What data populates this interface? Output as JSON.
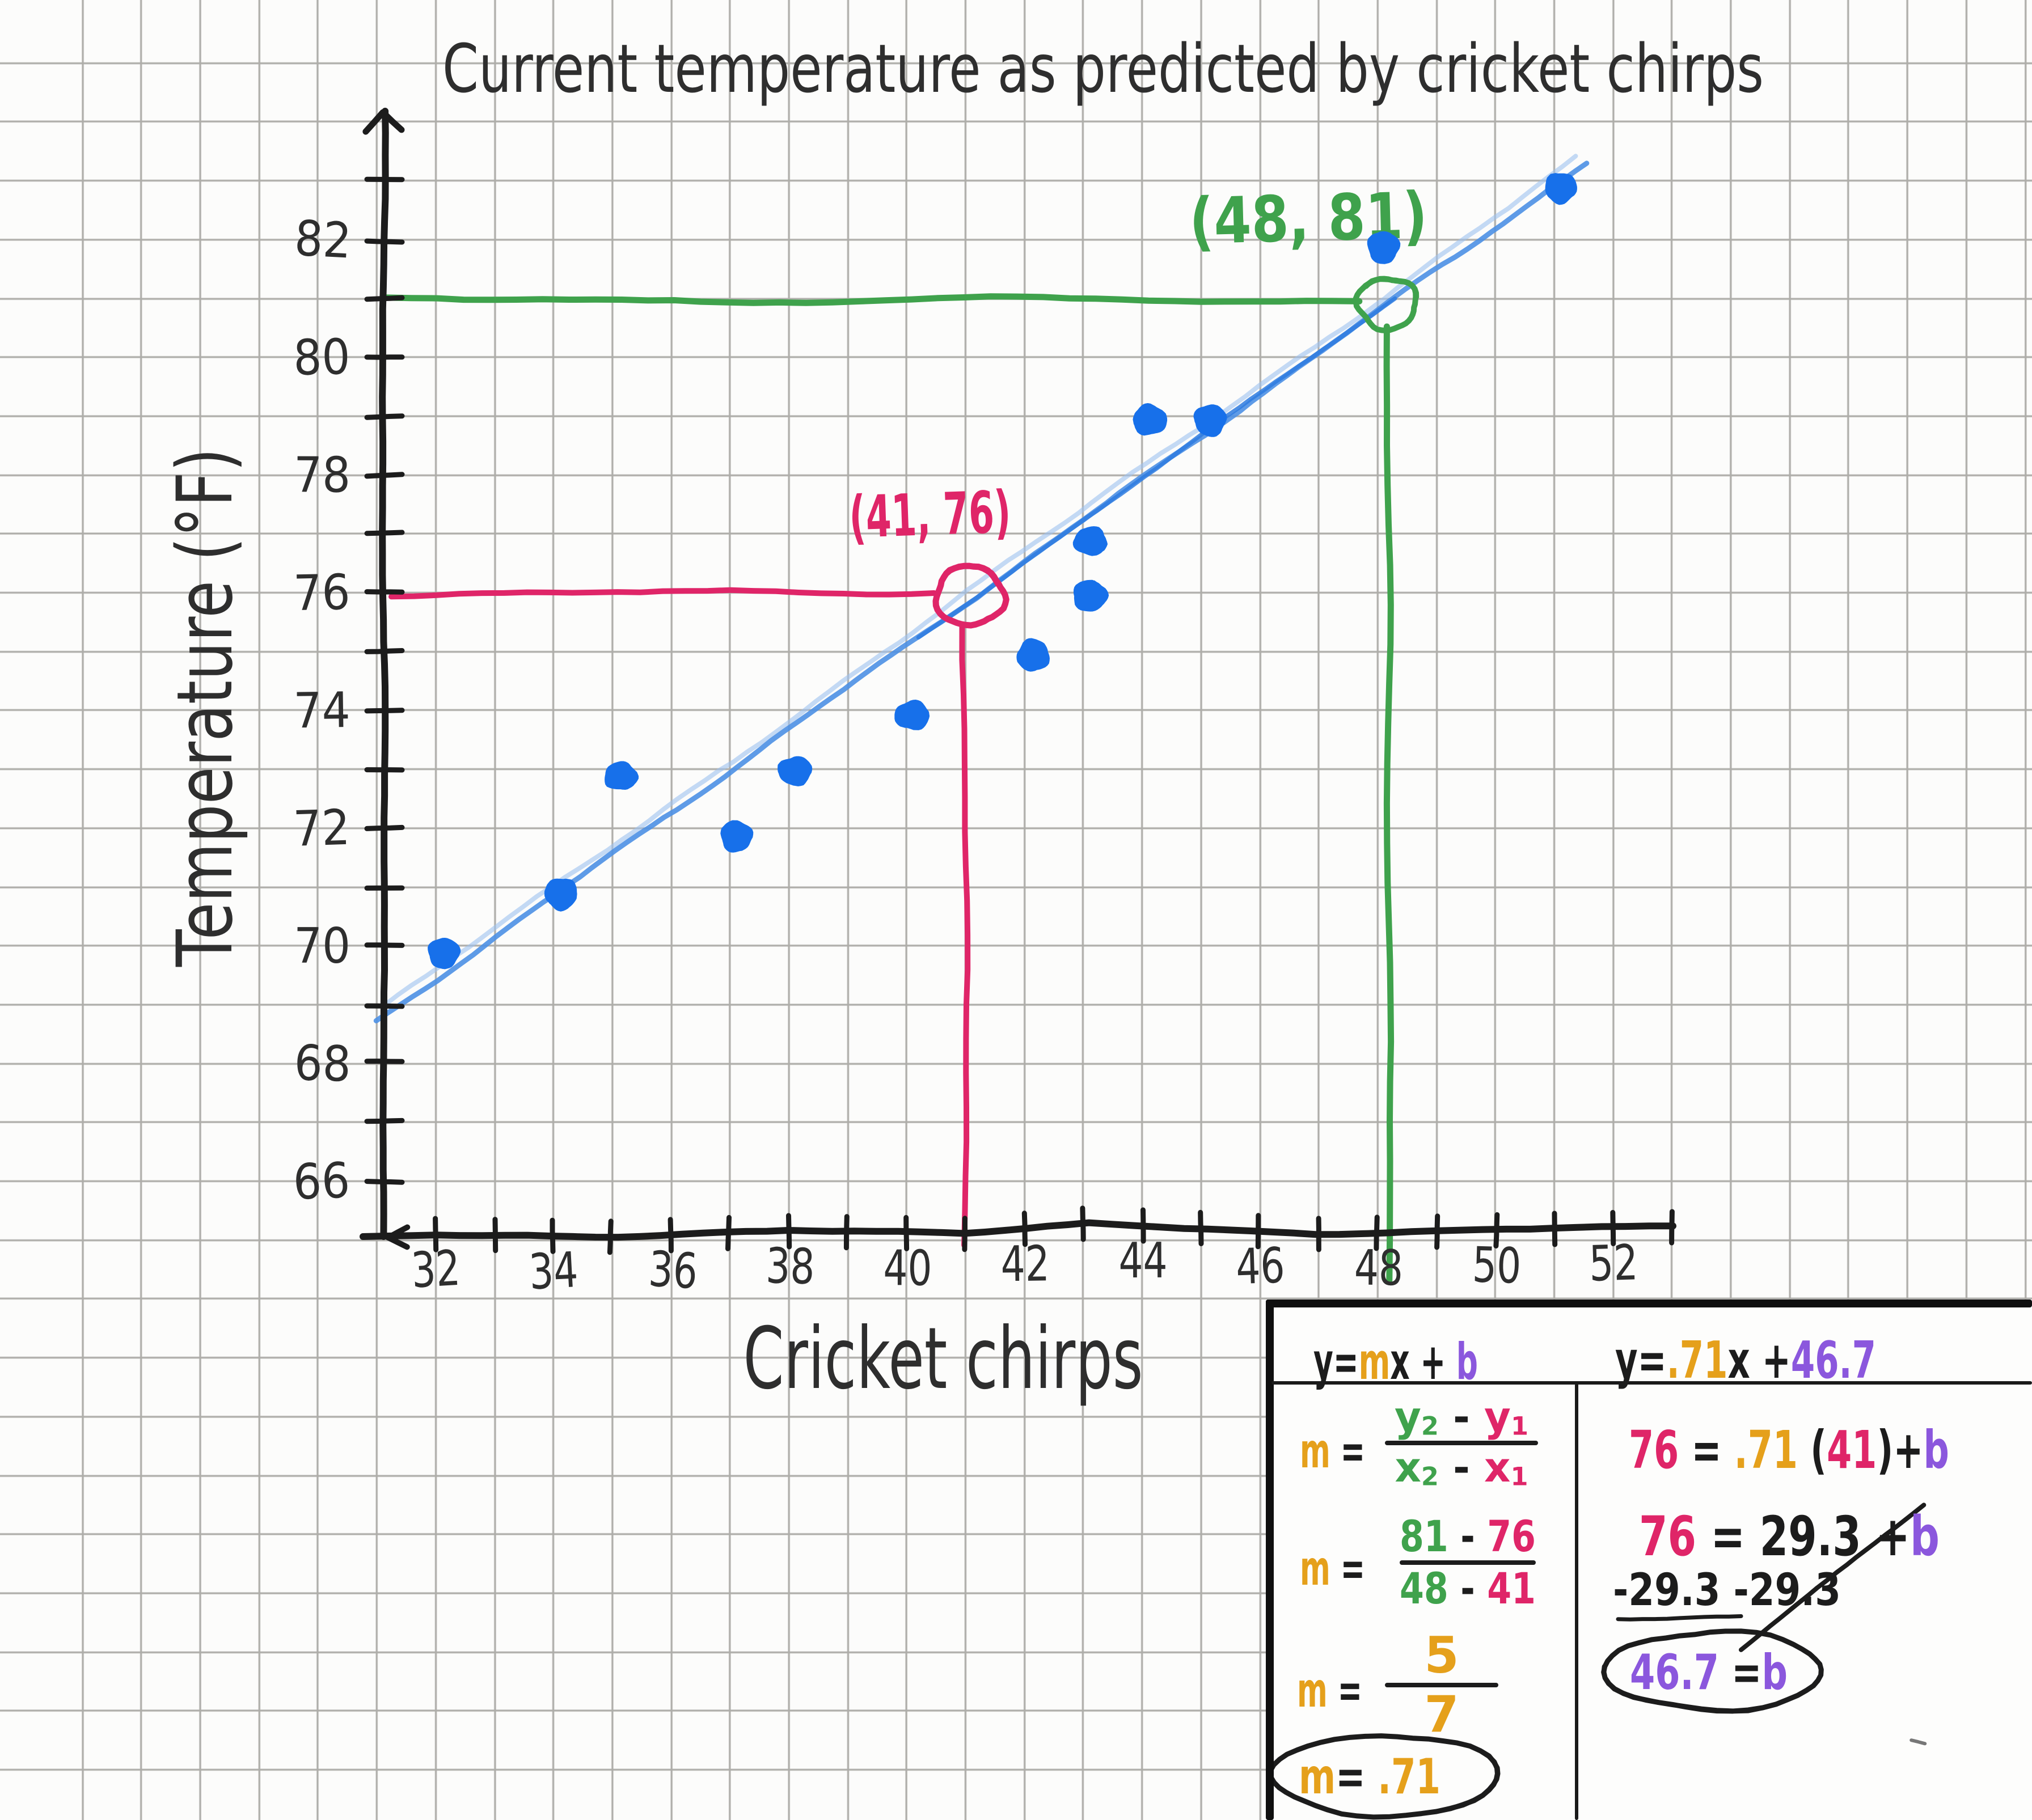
{
  "colors": {
    "ink": "#1c1c1c",
    "pencil": "#2e2e2e",
    "grid": "#acaba9",
    "paper": "#fcfcfb",
    "dot_blue": "#1770ea",
    "trend_blue": "#4c90e4",
    "trend_blue_light": "#9cc2f0",
    "trend_blue_dark": "#2e7bdf",
    "pink": "#df2568",
    "green": "#3fa24c",
    "orange": "#e5a01b",
    "purple": "#8b57dd"
  },
  "chart_data": {
    "type": "scatter",
    "title": "Current temperature as predicted by cricket chirps",
    "xlabel": "Cricket chirps",
    "ylabel": "Temperature (°F)",
    "xlim": [
      31.1,
      53.3
    ],
    "ylim": [
      65.1,
      84.2
    ],
    "grid": true,
    "x_ticks": {
      "min": 32,
      "max": 53,
      "step": 1,
      "label_min": 32,
      "label_max": 52,
      "label_step": 2
    },
    "y_ticks": {
      "min": 66,
      "max": 83,
      "step": 1,
      "label_min": 66,
      "label_max": 82,
      "label_step": 2
    },
    "points": [
      [
        32,
        70
      ],
      [
        34,
        71
      ],
      [
        35,
        73
      ],
      [
        37,
        72
      ],
      [
        38,
        73
      ],
      [
        40,
        74
      ],
      [
        42,
        75
      ],
      [
        43,
        76
      ],
      [
        43,
        77
      ],
      [
        44,
        79
      ],
      [
        45,
        79
      ],
      [
        48,
        82
      ],
      [
        51,
        83
      ]
    ],
    "trend_line": {
      "slope": 0.71,
      "intercept": 46.7,
      "x_start": 31.0,
      "x_end": 51.55
    },
    "annotations": [
      {
        "x": 41,
        "y": 76,
        "label": "(41, 76)",
        "color_key": "pink"
      },
      {
        "x": 48,
        "y": 81,
        "label": "(48, 81)",
        "color_key": "green"
      }
    ]
  },
  "work_panel": {
    "header_left": [
      {
        "t": "y=",
        "c": "ink"
      },
      {
        "t": "m",
        "c": "orange"
      },
      {
        "t": "x ",
        "c": "ink"
      },
      {
        "t": "+ ",
        "c": "ink"
      },
      {
        "t": "b",
        "c": "purple"
      }
    ],
    "header_right": [
      {
        "t": "y=",
        "c": "ink"
      },
      {
        "t": ".71",
        "c": "orange"
      },
      {
        "t": "x ",
        "c": "ink"
      },
      {
        "t": "+",
        "c": "ink"
      },
      {
        "t": "46.7",
        "c": "purple"
      }
    ],
    "slope_rows": [
      {
        "kind": "frac",
        "pre": [
          {
            "t": "m",
            "c": "orange"
          },
          {
            "t": " =",
            "c": "ink"
          }
        ],
        "num": [
          {
            "t": "y",
            "c": "green"
          },
          {
            "t": "2",
            "c": "green",
            "sub": true
          },
          {
            "t": " - ",
            "c": "ink"
          },
          {
            "t": "y",
            "c": "pink"
          },
          {
            "t": "1",
            "c": "pink",
            "sub": true
          }
        ],
        "den": [
          {
            "t": "x",
            "c": "green"
          },
          {
            "t": "2",
            "c": "green",
            "sub": true
          },
          {
            "t": " - ",
            "c": "ink"
          },
          {
            "t": "x",
            "c": "pink"
          },
          {
            "t": "1",
            "c": "pink",
            "sub": true
          }
        ]
      },
      {
        "kind": "frac",
        "pre": [
          {
            "t": "m",
            "c": "orange"
          },
          {
            "t": " =",
            "c": "ink"
          }
        ],
        "num": [
          {
            "t": "81",
            "c": "green"
          },
          {
            "t": " - ",
            "c": "ink"
          },
          {
            "t": "76",
            "c": "pink"
          }
        ],
        "den": [
          {
            "t": "48",
            "c": "green"
          },
          {
            "t": " - ",
            "c": "ink"
          },
          {
            "t": "41",
            "c": "pink"
          }
        ]
      },
      {
        "kind": "frac",
        "pre": [
          {
            "t": "m",
            "c": "orange"
          },
          {
            "t": " =",
            "c": "ink"
          }
        ],
        "num": [
          {
            "t": "5",
            "c": "orange"
          }
        ],
        "den": [
          {
            "t": "7",
            "c": "orange"
          }
        ]
      },
      {
        "kind": "circled",
        "seg": [
          {
            "t": "m",
            "c": "orange"
          },
          {
            "t": "= ",
            "c": "ink"
          },
          {
            "t": ".71",
            "c": "orange"
          }
        ]
      }
    ],
    "intercept_rows": [
      {
        "seg": [
          {
            "t": "76",
            "c": "pink"
          },
          {
            "t": " = ",
            "c": "ink"
          },
          {
            "t": ".71",
            "c": "orange"
          },
          {
            "t": " (",
            "c": "ink"
          },
          {
            "t": "41",
            "c": "pink"
          },
          {
            "t": ")",
            "c": "ink"
          },
          {
            "t": "+",
            "c": "ink"
          },
          {
            "t": "b",
            "c": "purple"
          }
        ]
      },
      {
        "seg": [
          {
            "t": "76",
            "c": "pink"
          },
          {
            "t": " = ",
            "c": "ink"
          },
          {
            "t": "29.3",
            "c": "ink"
          },
          {
            "t": " +",
            "c": "ink"
          },
          {
            "t": "b",
            "c": "purple"
          }
        ]
      },
      {
        "seg": [
          {
            "t": "-29.3 ",
            "c": "ink"
          },
          {
            "t": "-29.3",
            "c": "ink"
          }
        ]
      },
      {
        "kind": "circled",
        "seg": [
          {
            "t": "46.7",
            "c": "purple"
          },
          {
            "t": " =",
            "c": "ink"
          },
          {
            "t": "b",
            "c": "purple"
          }
        ]
      }
    ]
  }
}
